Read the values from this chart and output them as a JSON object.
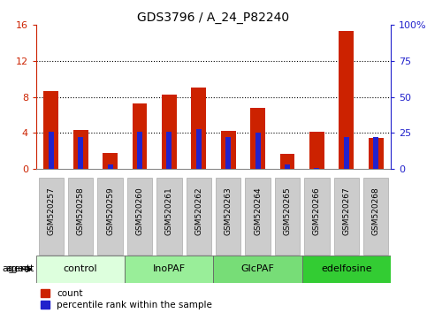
{
  "title": "GDS3796 / A_24_P82240",
  "samples": [
    "GSM520257",
    "GSM520258",
    "GSM520259",
    "GSM520260",
    "GSM520261",
    "GSM520262",
    "GSM520263",
    "GSM520264",
    "GSM520265",
    "GSM520266",
    "GSM520267",
    "GSM520268"
  ],
  "count_values": [
    8.7,
    4.3,
    1.8,
    7.3,
    8.3,
    9.1,
    4.2,
    6.8,
    1.7,
    4.1,
    15.3,
    3.5
  ],
  "percentile_values": [
    26,
    22,
    3,
    26,
    26,
    28,
    22,
    25,
    3,
    1,
    22,
    22
  ],
  "left_ylim": [
    0,
    16
  ],
  "right_ylim": [
    0,
    100
  ],
  "left_yticks": [
    0,
    4,
    8,
    12,
    16
  ],
  "right_yticks": [
    0,
    25,
    50,
    75,
    100
  ],
  "right_yticklabels": [
    "0",
    "25",
    "50",
    "75",
    "100%"
  ],
  "bar_color_red": "#cc2200",
  "bar_color_blue": "#2222cc",
  "tick_color_left": "#cc2200",
  "tick_color_right": "#2222cc",
  "agent_groups": [
    {
      "label": "control",
      "start": 0,
      "end": 3,
      "color": "#ddffdd"
    },
    {
      "label": "InoPAF",
      "start": 3,
      "end": 6,
      "color": "#99ee99"
    },
    {
      "label": "GlcPAF",
      "start": 6,
      "end": 9,
      "color": "#77dd77"
    },
    {
      "label": "edelfosine",
      "start": 9,
      "end": 12,
      "color": "#33cc33"
    }
  ],
  "xlabel_agent": "agent",
  "legend_count": "count",
  "legend_percentile": "percentile rank within the sample",
  "red_bar_width": 0.5,
  "blue_bar_width": 0.18,
  "grid_dotted_at": [
    4,
    8,
    12
  ],
  "background_color": "#ffffff",
  "plot_bg": "#ffffff",
  "xtick_box_color": "#cccccc",
  "xtick_box_edge": "#aaaaaa"
}
